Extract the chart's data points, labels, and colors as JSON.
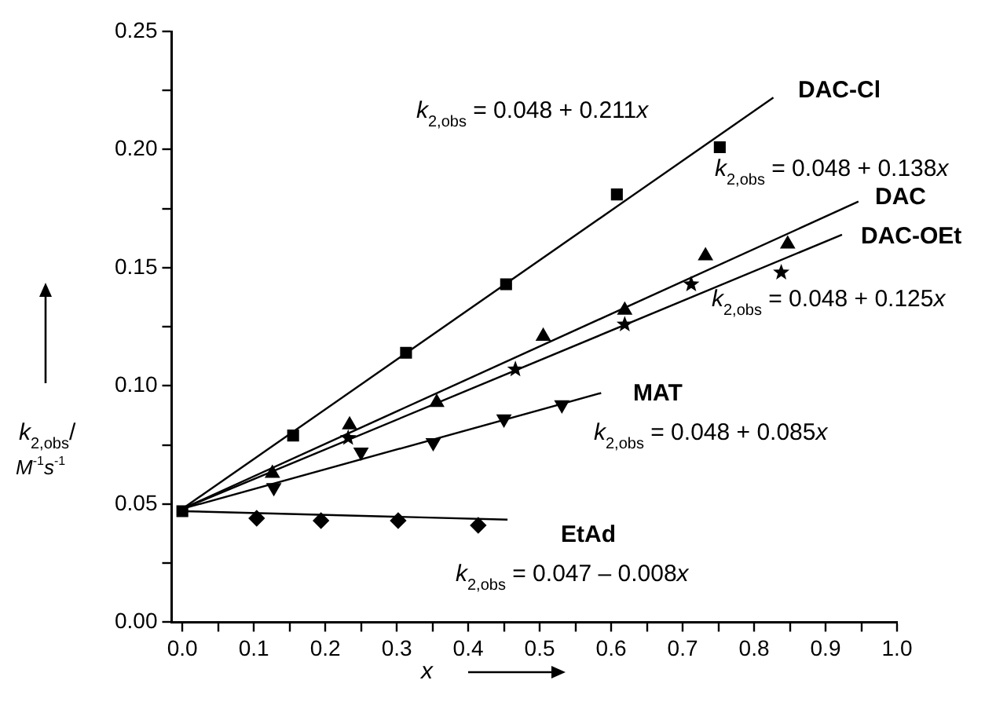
{
  "chart_data": {
    "type": "scatter",
    "xlabel": "x",
    "ylabel": "k$_{2,obs}$/ M$^{-1}$s$^{-1}$",
    "xlim": [
      -0.015,
      1.0
    ],
    "xticks": [
      {
        "value": 0,
        "label": "0.0"
      },
      {
        "value": 0.05,
        "label": null
      },
      {
        "value": 0.1,
        "label": "0.1"
      },
      {
        "value": 0.15,
        "label": null
      },
      {
        "value": 0.2,
        "label": "0.2"
      },
      {
        "value": 0.25,
        "label": null
      },
      {
        "value": 0.3,
        "label": "0.3"
      },
      {
        "value": 0.35,
        "label": null
      },
      {
        "value": 0.4,
        "label": "0.4"
      },
      {
        "value": 0.45,
        "label": null
      },
      {
        "value": 0.5,
        "label": "0.5"
      },
      {
        "value": 0.55,
        "label": null
      },
      {
        "value": 0.6,
        "label": "0.6"
      },
      {
        "value": 0.65,
        "label": null
      },
      {
        "value": 0.7,
        "label": "0.7"
      },
      {
        "value": 0.75,
        "label": null
      },
      {
        "value": 0.8,
        "label": "0.8"
      },
      {
        "value": 0.85,
        "label": null
      },
      {
        "value": 0.9,
        "label": "0.9"
      },
      {
        "value": 0.95,
        "label": null
      },
      {
        "value": 1.0,
        "label": "1.0"
      }
    ],
    "ylim": [
      0,
      0.25
    ],
    "yticks": [
      {
        "value": 0,
        "label": "0.00"
      },
      {
        "value": 0.025,
        "label": null
      },
      {
        "value": 0.05,
        "label": "0.05"
      },
      {
        "value": 0.075,
        "label": null
      },
      {
        "value": 0.1,
        "label": "0.10"
      },
      {
        "value": 0.125,
        "label": null
      },
      {
        "value": 0.15,
        "label": "0.15"
      },
      {
        "value": 0.175,
        "label": null
      },
      {
        "value": 0.2,
        "label": "0.20"
      },
      {
        "value": 0.225,
        "label": null
      },
      {
        "value": 0.25,
        "label": "0.25"
      }
    ],
    "grid": false,
    "legend": false,
    "series": [
      {
        "name": "DAC-Cl",
        "type": "scatter",
        "marker": "square",
        "color": "#000000",
        "x": [
          0,
          0.155,
          0.313,
          0.453,
          0.608,
          0.752
        ],
        "values": [
          0.047,
          0.079,
          0.114,
          0.143,
          0.181,
          0.201
        ]
      },
      {
        "name": "DAC",
        "type": "scatter",
        "marker": "triangle",
        "color": "#000000",
        "x": [
          0.126,
          0.234,
          0.356,
          0.505,
          0.619,
          0.732,
          0.847
        ],
        "values": [
          0.063,
          0.0835,
          0.093,
          0.121,
          0.132,
          0.155,
          0.16
        ]
      },
      {
        "name": "DAC-OEt",
        "type": "scatter",
        "marker": "star",
        "color": "#000000",
        "x": [
          0.232,
          0.466,
          0.619,
          0.712,
          0.838
        ],
        "values": [
          0.078,
          0.107,
          0.126,
          0.143,
          0.148
        ]
      },
      {
        "name": "MAT",
        "type": "scatter",
        "marker": "triangle-down",
        "color": "#000000",
        "x": [
          0.128,
          0.25,
          0.351,
          0.45,
          0.531
        ],
        "values": [
          0.057,
          0.072,
          0.076,
          0.086,
          0.092
        ]
      },
      {
        "name": "EtAd",
        "type": "scatter",
        "marker": "diamond",
        "color": "#000000",
        "x": [
          0.104,
          0.194,
          0.302,
          0.414
        ],
        "values": [
          0.044,
          0.043,
          0.043,
          0.041
        ]
      },
      {
        "type": "line",
        "marker": "none",
        "color": "#000000",
        "x": [
          0,
          0.827
        ],
        "values": [
          0.048,
          0.222
        ]
      },
      {
        "type": "line",
        "marker": "none",
        "color": "#000000",
        "x": [
          0,
          0.946
        ],
        "values": [
          0.048,
          0.178
        ]
      },
      {
        "type": "line",
        "marker": "none",
        "color": "#000000",
        "x": [
          0,
          0.923
        ],
        "values": [
          0.048,
          0.164
        ]
      },
      {
        "type": "line",
        "marker": "none",
        "color": "#000000",
        "x": [
          0,
          0.586
        ],
        "values": [
          0.048,
          0.097
        ]
      },
      {
        "type": "line",
        "marker": "none",
        "color": "#000000",
        "x": [
          0,
          0.455
        ],
        "values": [
          0.047,
          0.0434
        ]
      }
    ],
    "annotations": [
      "k$_{2,obs}$ = 0.048 + 0.211x",
      "k$_{2,obs}$ = 0.048 + 0.138x",
      "k$_{2,obs}$ = 0.048 + 0.125x",
      "k$_{2,obs}$ = 0.048 + 0.085x",
      "k$_{2,obs}$ = 0.047 – 0.008x"
    ]
  }
}
